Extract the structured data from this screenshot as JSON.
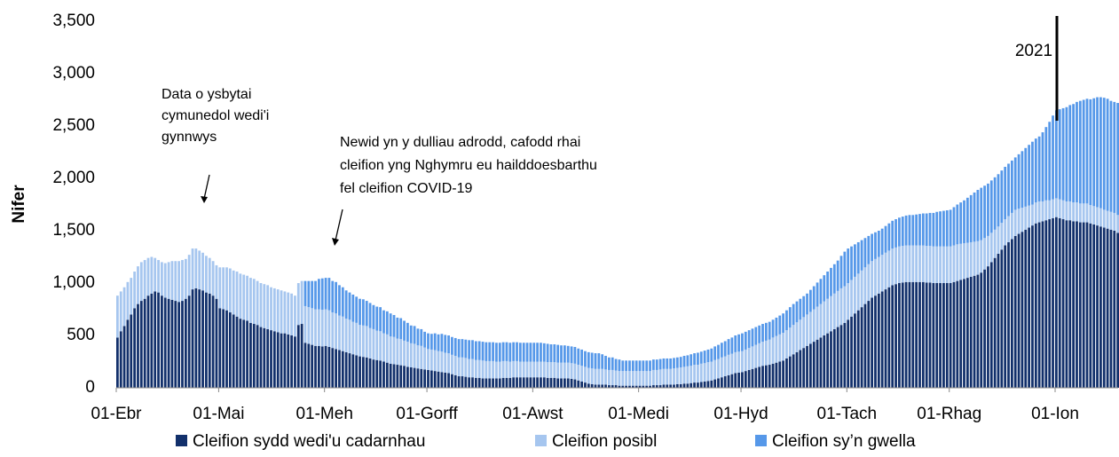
{
  "chart_data": {
    "type": "stacked_bar",
    "y_label": "Nifer",
    "ylim": [
      0,
      3500
    ],
    "yticks": [
      0,
      500,
      {
        "value": 1000,
        "label": "1,000"
      },
      {
        "value": 1500,
        "label": "1,500"
      },
      {
        "value": 2000,
        "label": "2,000"
      },
      {
        "value": 2500,
        "label": "2,500"
      },
      {
        "value": 3000,
        "label": "3,000"
      },
      {
        "value": 3500,
        "label": "3,500"
      }
    ],
    "annotations": [
      {
        "lines": [
          "Data o ysbytai",
          "cymunedol wedi'i",
          "gynnwys"
        ]
      },
      {
        "lines": [
          "Newid yn y dulliau adrodd, cafodd rhai",
          "cleifion yng Nghymru eu hailddoesbarthu",
          "fel cleifion COVID-19"
        ]
      },
      {
        "lines": [
          "2021"
        ]
      }
    ],
    "categories": [
      "01-Ebr",
      null,
      null,
      null,
      null,
      null,
      null,
      null,
      null,
      null,
      null,
      null,
      null,
      null,
      null,
      null,
      null,
      null,
      null,
      null,
      null,
      null,
      null,
      null,
      null,
      null,
      null,
      null,
      null,
      null,
      "01-Mai",
      null,
      null,
      null,
      null,
      null,
      null,
      null,
      null,
      null,
      null,
      null,
      null,
      null,
      null,
      null,
      null,
      null,
      null,
      null,
      null,
      null,
      null,
      null,
      null,
      null,
      null,
      null,
      null,
      null,
      null,
      "01-Meh",
      null,
      null,
      null,
      null,
      null,
      null,
      null,
      null,
      null,
      null,
      null,
      null,
      null,
      null,
      null,
      null,
      null,
      null,
      null,
      null,
      null,
      null,
      null,
      null,
      null,
      null,
      null,
      null,
      null,
      "01-Gorff",
      null,
      null,
      null,
      null,
      null,
      null,
      null,
      null,
      null,
      null,
      null,
      null,
      null,
      null,
      null,
      null,
      null,
      null,
      null,
      null,
      null,
      null,
      null,
      null,
      null,
      null,
      null,
      null,
      null,
      null,
      "01-Awst",
      null,
      null,
      null,
      null,
      null,
      null,
      null,
      null,
      null,
      null,
      null,
      null,
      null,
      null,
      null,
      null,
      null,
      null,
      null,
      null,
      null,
      null,
      null,
      null,
      null,
      null,
      null,
      null,
      null,
      null,
      "01-Medi",
      null,
      null,
      null,
      null,
      null,
      null,
      null,
      null,
      null,
      null,
      null,
      null,
      null,
      null,
      null,
      null,
      null,
      null,
      null,
      null,
      null,
      null,
      null,
      null,
      null,
      null,
      null,
      null,
      null,
      "01-Hyd",
      null,
      null,
      null,
      null,
      null,
      null,
      null,
      null,
      null,
      null,
      null,
      null,
      null,
      null,
      null,
      null,
      null,
      null,
      null,
      null,
      null,
      null,
      null,
      null,
      null,
      null,
      null,
      null,
      null,
      null,
      "01-Tach",
      null,
      null,
      null,
      null,
      null,
      null,
      null,
      null,
      null,
      null,
      null,
      null,
      null,
      null,
      null,
      null,
      null,
      null,
      null,
      null,
      null,
      null,
      null,
      null,
      null,
      null,
      null,
      null,
      null,
      "01-Rhag",
      null,
      null,
      null,
      null,
      null,
      null,
      null,
      null,
      null,
      null,
      null,
      null,
      null,
      null,
      null,
      null,
      null,
      null,
      null,
      null,
      null,
      null,
      null,
      null,
      null,
      null,
      null,
      null,
      null,
      null,
      "01-Ion",
      null,
      null,
      null,
      null,
      null,
      null,
      null,
      null,
      null,
      null,
      null,
      null,
      null,
      null,
      null,
      null,
      null,
      null
    ],
    "series": [
      {
        "name": "Cleifion sydd wedi'u cadarnhau",
        "color": "#12306b",
        "values": [
          480,
          540,
          590,
          650,
          700,
          760,
          800,
          830,
          850,
          880,
          900,
          920,
          910,
          880,
          860,
          850,
          840,
          830,
          820,
          830,
          850,
          880,
          940,
          950,
          940,
          930,
          910,
          900,
          880,
          850,
          760,
          750,
          740,
          720,
          700,
          680,
          660,
          650,
          640,
          620,
          610,
          600,
          580,
          570,
          560,
          550,
          540,
          530,
          520,
          520,
          510,
          500,
          490,
          600,
          610,
          430,
          420,
          410,
          400,
          400,
          395,
          400,
          390,
          380,
          370,
          360,
          350,
          340,
          330,
          320,
          310,
          300,
          295,
          290,
          280,
          270,
          265,
          260,
          250,
          240,
          230,
          225,
          220,
          215,
          210,
          200,
          195,
          190,
          185,
          180,
          175,
          170,
          165,
          160,
          155,
          150,
          145,
          140,
          130,
          120,
          110,
          110,
          105,
          100,
          100,
          95,
          95,
          90,
          90,
          90,
          90,
          90,
          90,
          95,
          95,
          95,
          100,
          100,
          100,
          100,
          100,
          100,
          100,
          100,
          100,
          100,
          95,
          95,
          95,
          90,
          90,
          90,
          90,
          85,
          80,
          70,
          60,
          50,
          40,
          35,
          30,
          30,
          30,
          30,
          25,
          25,
          25,
          20,
          20,
          20,
          20,
          20,
          20,
          20,
          20,
          20,
          20,
          25,
          25,
          25,
          30,
          30,
          30,
          30,
          35,
          35,
          40,
          40,
          45,
          50,
          50,
          55,
          60,
          65,
          70,
          80,
          90,
          100,
          110,
          120,
          130,
          140,
          145,
          150,
          160,
          170,
          180,
          190,
          200,
          210,
          215,
          220,
          230,
          240,
          250,
          260,
          280,
          300,
          320,
          340,
          360,
          380,
          400,
          420,
          440,
          460,
          480,
          500,
          520,
          540,
          560,
          580,
          600,
          620,
          650,
          680,
          710,
          740,
          770,
          800,
          830,
          860,
          880,
          900,
          920,
          940,
          960,
          980,
          990,
          1000,
          1005,
          1010,
          1010,
          1010,
          1010,
          1010,
          1010,
          1005,
          1005,
          1000,
          1000,
          1000,
          1000,
          1000,
          1000,
          1010,
          1020,
          1030,
          1040,
          1050,
          1060,
          1070,
          1080,
          1100,
          1130,
          1160,
          1200,
          1240,
          1280,
          1320,
          1360,
          1390,
          1420,
          1450,
          1470,
          1490,
          1510,
          1530,
          1550,
          1570,
          1580,
          1590,
          1600,
          1610,
          1620,
          1630,
          1620,
          1610,
          1600,
          1600,
          1590,
          1590,
          1580,
          1580,
          1580,
          1570,
          1560,
          1550,
          1540,
          1530,
          1520,
          1510,
          1500,
          1480
        ]
      },
      {
        "name": "Cleifion posibl",
        "color": "#a6c6ef",
        "values": [
          400,
          380,
          370,
          360,
          350,
          350,
          360,
          370,
          370,
          360,
          350,
          320,
          310,
          320,
          330,
          350,
          370,
          380,
          390,
          390,
          380,
          390,
          390,
          380,
          370,
          360,
          350,
          340,
          330,
          320,
          390,
          400,
          410,
          420,
          420,
          430,
          430,
          430,
          430,
          430,
          430,
          420,
          420,
          420,
          420,
          410,
          410,
          410,
          410,
          400,
          400,
          400,
          390,
          400,
          410,
          350,
          350,
          350,
          350,
          350,
          350,
          350,
          350,
          340,
          340,
          330,
          330,
          320,
          320,
          310,
          310,
          300,
          300,
          300,
          290,
          290,
          280,
          280,
          270,
          270,
          260,
          260,
          250,
          250,
          240,
          240,
          230,
          230,
          220,
          220,
          210,
          200,
          200,
          200,
          195,
          195,
          190,
          190,
          185,
          185,
          180,
          180,
          180,
          175,
          175,
          170,
          170,
          170,
          165,
          165,
          165,
          160,
          160,
          160,
          160,
          155,
          155,
          155,
          150,
          150,
          150,
          150,
          150,
          150,
          150,
          150,
          150,
          150,
          150,
          150,
          150,
          150,
          150,
          150,
          150,
          150,
          150,
          150,
          150,
          150,
          150,
          150,
          150,
          145,
          145,
          145,
          140,
          140,
          140,
          140,
          140,
          140,
          140,
          140,
          140,
          140,
          140,
          145,
          145,
          150,
          150,
          150,
          150,
          155,
          155,
          160,
          160,
          165,
          165,
          170,
          170,
          175,
          175,
          180,
          180,
          185,
          185,
          190,
          190,
          195,
          195,
          200,
          200,
          200,
          205,
          210,
          215,
          220,
          225,
          230,
          235,
          240,
          250,
          255,
          260,
          265,
          270,
          275,
          280,
          285,
          290,
          295,
          300,
          305,
          310,
          315,
          320,
          325,
          330,
          335,
          340,
          345,
          350,
          350,
          350,
          350,
          350,
          350,
          350,
          350,
          350,
          350,
          350,
          350,
          350,
          350,
          350,
          350,
          350,
          350,
          350,
          350,
          350,
          350,
          350,
          350,
          350,
          350,
          350,
          350,
          350,
          350,
          350,
          350,
          350,
          350,
          350,
          345,
          340,
          335,
          330,
          325,
          320,
          310,
          300,
          290,
          280,
          270,
          260,
          255,
          250,
          250,
          250,
          250,
          240,
          230,
          220,
          210,
          200,
          200,
          200,
          190,
          190,
          180,
          180,
          180,
          180,
          180,
          180,
          180,
          180,
          180,
          180,
          180,
          180,
          175,
          175,
          175,
          175,
          170,
          170,
          170,
          170,
          170
        ]
      },
      {
        "name": "Cleifion sy’n gwella",
        "color": "#5698e9",
        "values": [
          null,
          null,
          null,
          null,
          null,
          null,
          null,
          null,
          null,
          null,
          null,
          null,
          null,
          null,
          null,
          null,
          null,
          null,
          null,
          null,
          null,
          null,
          null,
          null,
          null,
          null,
          null,
          null,
          null,
          null,
          null,
          null,
          null,
          null,
          null,
          null,
          null,
          null,
          null,
          null,
          null,
          null,
          null,
          null,
          null,
          null,
          null,
          null,
          null,
          null,
          null,
          null,
          null,
          null,
          null,
          240,
          250,
          260,
          270,
          290,
          300,
          300,
          310,
          300,
          300,
          290,
          280,
          270,
          260,
          260,
          250,
          250,
          250,
          240,
          240,
          230,
          230,
          230,
          220,
          220,
          220,
          210,
          200,
          200,
          190,
          180,
          170,
          170,
          160,
          160,
          150,
          150,
          150,
          160,
          160,
          170,
          170,
          170,
          170,
          170,
          175,
          175,
          175,
          180,
          180,
          180,
          180,
          180,
          180,
          180,
          180,
          180,
          180,
          180,
          180,
          180,
          180,
          180,
          180,
          180,
          180,
          180,
          180,
          180,
          180,
          175,
          175,
          170,
          170,
          170,
          165,
          165,
          160,
          160,
          160,
          155,
          155,
          150,
          150,
          150,
          150,
          150,
          140,
          130,
          120,
          120,
          110,
          110,
          100,
          100,
          100,
          100,
          100,
          100,
          100,
          100,
          100,
          100,
          100,
          100,
          100,
          100,
          100,
          100,
          100,
          100,
          105,
          105,
          110,
          110,
          115,
          115,
          120,
          120,
          125,
          130,
          135,
          140,
          145,
          150,
          155,
          160,
          165,
          170,
          170,
          170,
          170,
          170,
          170,
          170,
          170,
          170,
          170,
          175,
          180,
          185,
          190,
          195,
          200,
          200,
          200,
          200,
          200,
          210,
          220,
          230,
          240,
          250,
          260,
          270,
          280,
          290,
          310,
          330,
          330,
          320,
          310,
          300,
          290,
          280,
          270,
          260,
          255,
          250,
          250,
          255,
          260,
          265,
          270,
          275,
          280,
          285,
          290,
          290,
          295,
          300,
          305,
          310,
          315,
          320,
          330,
          335,
          340,
          345,
          350,
          365,
          380,
          395,
          410,
          430,
          450,
          470,
          490,
          500,
          500,
          500,
          500,
          500,
          500,
          500,
          500,
          500,
          500,
          500,
          520,
          540,
          560,
          580,
          600,
          610,
          620,
          660,
          700,
          750,
          800,
          840,
          860,
          880,
          900,
          920,
          940,
          960,
          980,
          990,
          1000,
          1010,
          1030,
          1050,
          1060,
          1070,
          1070,
          1060,
          1060,
          1070
        ]
      }
    ]
  }
}
